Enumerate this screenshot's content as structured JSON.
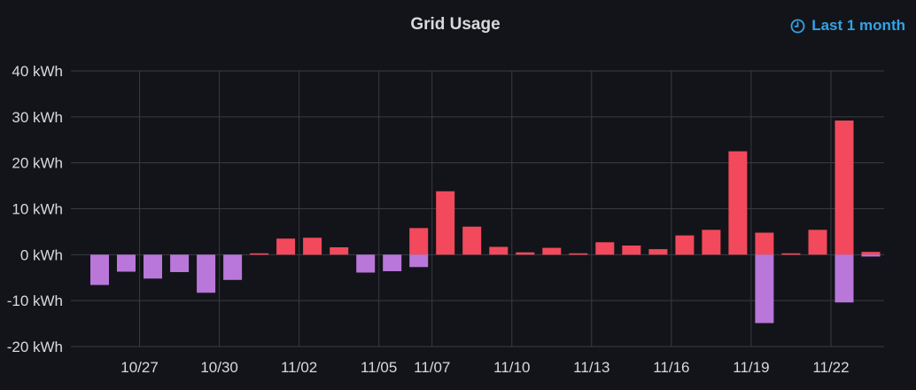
{
  "panel": {
    "title": "Grid Usage",
    "time_range": "Last 1 month"
  },
  "colors": {
    "background": "#131419",
    "grid": "#3a3b40",
    "import": "#f2495c",
    "export": "#b877d9",
    "axis_text": "#d8d9da",
    "accent": "#33a2e5"
  },
  "icons": {
    "time_range": "clock-icon"
  },
  "chart_data": {
    "type": "bar",
    "title": "Grid Usage",
    "unit": "kWh",
    "ylim": [
      -20,
      40
    ],
    "y_ticks": [
      {
        "value": 40,
        "label": "40 kWh"
      },
      {
        "value": 30,
        "label": "30 kWh"
      },
      {
        "value": 20,
        "label": "20 kWh"
      },
      {
        "value": 10,
        "label": "10 kWh"
      },
      {
        "value": 0,
        "label": "0 kWh"
      },
      {
        "value": -10,
        "label": "-10 kWh"
      },
      {
        "value": -20,
        "label": "-20 kWh"
      }
    ],
    "x_ticks": [
      {
        "date": "2023-10-27",
        "label": "10/27"
      },
      {
        "date": "2023-10-30",
        "label": "10/30"
      },
      {
        "date": "2023-11-02",
        "label": "11/02"
      },
      {
        "date": "2023-11-05",
        "label": "11/05"
      },
      {
        "date": "2023-11-07",
        "label": "11/07"
      },
      {
        "date": "2023-11-10",
        "label": "11/10"
      },
      {
        "date": "2023-11-13",
        "label": "11/13"
      },
      {
        "date": "2023-11-16",
        "label": "11/16"
      },
      {
        "date": "2023-11-19",
        "label": "11/19"
      },
      {
        "date": "2023-11-22",
        "label": "11/22"
      }
    ],
    "x_range": [
      "2023-10-24T10:00",
      "2023-11-24T00:00"
    ],
    "grid": true,
    "legend": "none",
    "series": [
      {
        "key": "import",
        "color": "#f2495c",
        "points": [
          {
            "date": "2023-10-31",
            "value": 0.3
          },
          {
            "date": "2023-11-01",
            "value": 3.5
          },
          {
            "date": "2023-11-02",
            "value": 3.7
          },
          {
            "date": "2023-11-03",
            "value": 1.6
          },
          {
            "date": "2023-11-06",
            "value": 5.8
          },
          {
            "date": "2023-11-07",
            "value": 13.8
          },
          {
            "date": "2023-11-08",
            "value": 6.1
          },
          {
            "date": "2023-11-09",
            "value": 1.7
          },
          {
            "date": "2023-11-10",
            "value": 0.5
          },
          {
            "date": "2023-11-11",
            "value": 1.5
          },
          {
            "date": "2023-11-12",
            "value": 0.3
          },
          {
            "date": "2023-11-13",
            "value": 2.7
          },
          {
            "date": "2023-11-14",
            "value": 2.0
          },
          {
            "date": "2023-11-15",
            "value": 1.2
          },
          {
            "date": "2023-11-16",
            "value": 4.2
          },
          {
            "date": "2023-11-17",
            "value": 5.4
          },
          {
            "date": "2023-11-18",
            "value": 22.5
          },
          {
            "date": "2023-11-19",
            "value": 4.8
          },
          {
            "date": "2023-11-20",
            "value": 0.3
          },
          {
            "date": "2023-11-21",
            "value": 5.4
          },
          {
            "date": "2023-11-22",
            "value": 29.2
          },
          {
            "date": "2023-11-23",
            "value": 0.6
          }
        ]
      },
      {
        "key": "export",
        "color": "#b877d9",
        "points": [
          {
            "date": "2023-10-25",
            "value": -6.6
          },
          {
            "date": "2023-10-26",
            "value": -3.7
          },
          {
            "date": "2023-10-27",
            "value": -5.2
          },
          {
            "date": "2023-10-28",
            "value": -3.8
          },
          {
            "date": "2023-10-29",
            "value": -8.3
          },
          {
            "date": "2023-10-30",
            "value": -5.5
          },
          {
            "date": "2023-11-04",
            "value": -3.9
          },
          {
            "date": "2023-11-05",
            "value": -3.6
          },
          {
            "date": "2023-11-06",
            "value": -2.7
          },
          {
            "date": "2023-11-19",
            "value": -14.9
          },
          {
            "date": "2023-11-22",
            "value": -10.4
          },
          {
            "date": "2023-11-23",
            "value": -0.4
          }
        ]
      }
    ]
  }
}
